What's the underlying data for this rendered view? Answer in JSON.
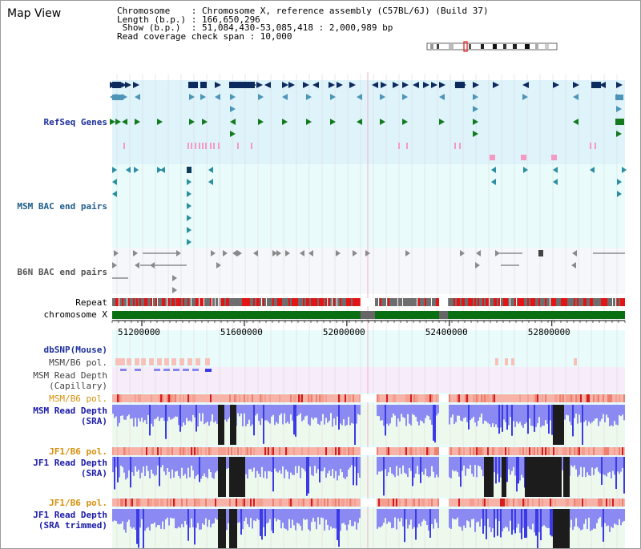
{
  "view": {
    "title": "Map View",
    "info_lines": [
      "Chromosome    : Chromosome X, reference assembly (C57BL/6J) (Build 37)",
      "Length (b.p.) : 166,650,296",
      " Show (b.p.)  : 51,084,430-53,085,418 : 2,000,989 bp",
      "Read coverage check span : 10,000"
    ]
  },
  "region": {
    "start": 51084430,
    "end": 53085418,
    "gap_start": 52053000,
    "gap_end": 52110000,
    "gap2_start": 52360000,
    "gap2_end": 52395000
  },
  "axis_ticks": [
    {
      "pos": 51200000,
      "label": "51200000"
    },
    {
      "pos": 51600000,
      "label": "51600000"
    },
    {
      "pos": 52000000,
      "label": "52000000"
    },
    {
      "pos": 52400000,
      "label": "52400000"
    },
    {
      "pos": 52800000,
      "label": "52800000"
    }
  ],
  "tracks": [
    {
      "id": "refseq",
      "label": "RefSeq Genes",
      "color": "#1d2f9a"
    },
    {
      "id": "msm-bac",
      "label": "MSM BAC end pairs",
      "color": "#1e5d8a"
    },
    {
      "id": "b6n-bac",
      "label": "B6N BAC end pairs",
      "color": "#555555"
    },
    {
      "id": "repeat",
      "label": "Repeat",
      "color": "#000000"
    },
    {
      "id": "chromosome",
      "label": "chromosome X",
      "color": "#000000"
    },
    {
      "id": "dbsnp",
      "label": "dbSNP(Mouse)",
      "color": "#1d2f9a"
    },
    {
      "id": "msm-b6-pol-1",
      "label": "MSM/B6 pol.",
      "color": "#444444"
    },
    {
      "id": "msm-depth-cap",
      "label": "MSM Read Depth\n(Capillary)",
      "color": "#444444"
    },
    {
      "id": "msm-b6-pol-2",
      "label": "MSM/B6 pol.",
      "color": "#d6900c"
    },
    {
      "id": "msm-depth-sra",
      "label": "MSM Read Depth\n(SRA)",
      "color": "#1a1aa8"
    },
    {
      "id": "jf1-b6-pol-1",
      "label": "JF1/B6 pol.",
      "color": "#d6900c"
    },
    {
      "id": "jf1-depth-sra",
      "label": "JF1 Read Depth\n(SRA)",
      "color": "#1a1aa8"
    },
    {
      "id": "jf1-b6-pol-2",
      "label": "JF1/B6 pol.",
      "color": "#d6900c"
    },
    {
      "id": "jf1-depth-trim",
      "label": "JF1 Read Depth\n(SRA trimmed)",
      "color": "#1a1aa8"
    }
  ],
  "colors": {
    "refseq_bg": "#dff3fb",
    "msm_bac_bg": "#e9fbfb",
    "b6n_bac_bg": "#f5f7fb",
    "gene_dark": "#0d2a5e",
    "gene_teal": "#4d95b8",
    "gene_green": "#137a1e",
    "gene_pink": "#f49ac2",
    "bac_teal": "#2b8ea2",
    "repeat_red": "#e41414",
    "repeat_grey": "#6e6e6e",
    "chrom_green": "#0a6e12",
    "depth_blue": "#3a3ae6",
    "depth_light": "#8a8af2",
    "depth_black": "#1c1c1c",
    "pol_salmon": "#f7b3a8",
    "pol_red": "#d41c1c"
  }
}
